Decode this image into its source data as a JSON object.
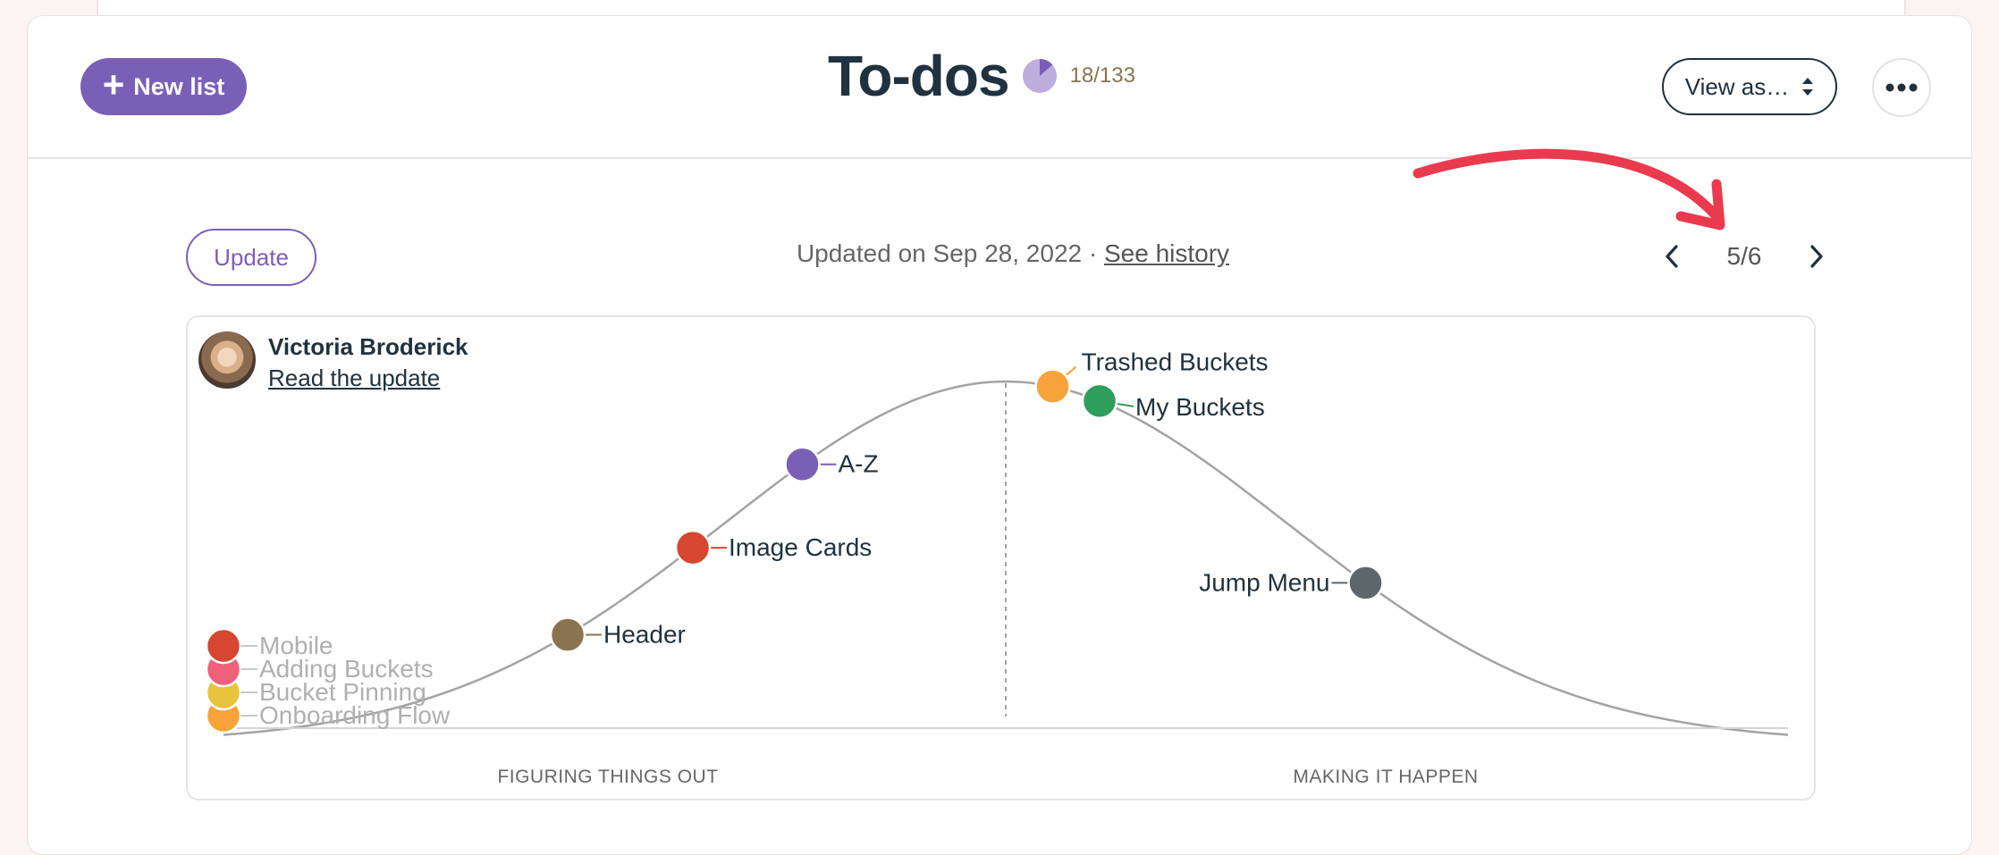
{
  "header": {
    "new_list_label": "New list",
    "title": "To-dos",
    "progress_text": "18/133",
    "progress_fraction": 0.135,
    "view_as_label": "View as…"
  },
  "update_bar": {
    "update_label": "Update",
    "updated_text": "Updated on Sep 28, 2022 · ",
    "history_link": "See history",
    "page_indicator": "5/6"
  },
  "hill_chart": {
    "author_name": "Victoria Broderick",
    "author_link": "Read the update",
    "left_label": "FIGURING THINGS OUT",
    "right_label": "MAKING IT HAPPEN"
  },
  "chart_data": {
    "type": "scatter",
    "curve": "hill",
    "x_range": [
      0,
      100
    ],
    "points": [
      {
        "name": "Mobile",
        "x": 0,
        "color": "#d64631",
        "dimmed": true
      },
      {
        "name": "Adding Buckets",
        "x": 0,
        "color": "#f0607a",
        "dimmed": true
      },
      {
        "name": "Bucket Pinning",
        "x": 0,
        "color": "#e8c43c",
        "dimmed": true
      },
      {
        "name": "Onboarding Flow",
        "x": 0,
        "color": "#f8a23a",
        "dimmed": true
      },
      {
        "name": "Header",
        "x": 22,
        "color": "#8a7351",
        "dimmed": false
      },
      {
        "name": "Image Cards",
        "x": 30,
        "color": "#d64631",
        "dimmed": false
      },
      {
        "name": "A-Z",
        "x": 37,
        "color": "#7a5fb7",
        "dimmed": false
      },
      {
        "name": "Trashed Buckets",
        "x": 53,
        "color": "#f8a23a",
        "dimmed": false
      },
      {
        "name": "My Buckets",
        "x": 56,
        "color": "#2f9e5c",
        "dimmed": false
      },
      {
        "name": "Jump Menu",
        "x": 73,
        "color": "#5d666b",
        "dimmed": false
      }
    ]
  },
  "colors": {
    "accent": "#7a5fb7",
    "annotation_arrow": "#ea3a4e"
  }
}
